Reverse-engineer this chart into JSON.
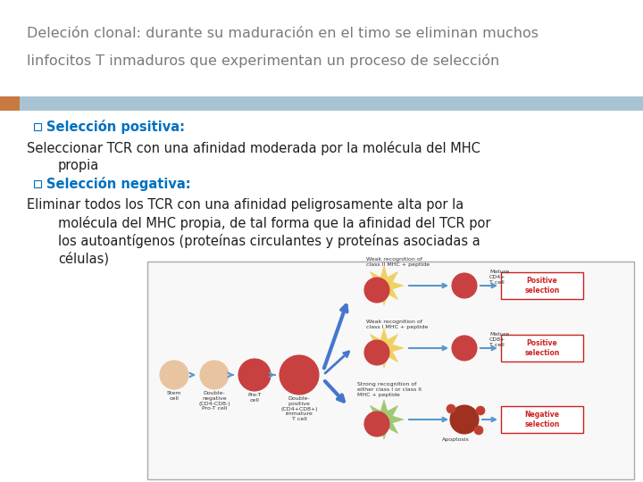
{
  "title_line1": "Deleción clonal: durante su maduración en el timo se eliminan muchos",
  "title_line2": "linfocitos T inmaduros que experimentan un proceso de selección",
  "title_color": "#7a7a7a",
  "title_fontsize": 11.5,
  "header_bar_color": "#a8c4d4",
  "accent_bar_color": "#c87941",
  "background_color": "#ffffff",
  "bullet_color": "#0070c0",
  "bullet1_bold": "Selección positiva:",
  "bullet2_bold": "Selección negativa:",
  "body_color": "#1f1f1f",
  "body_fontsize": 10.5,
  "bullet_fontsize": 10.5
}
